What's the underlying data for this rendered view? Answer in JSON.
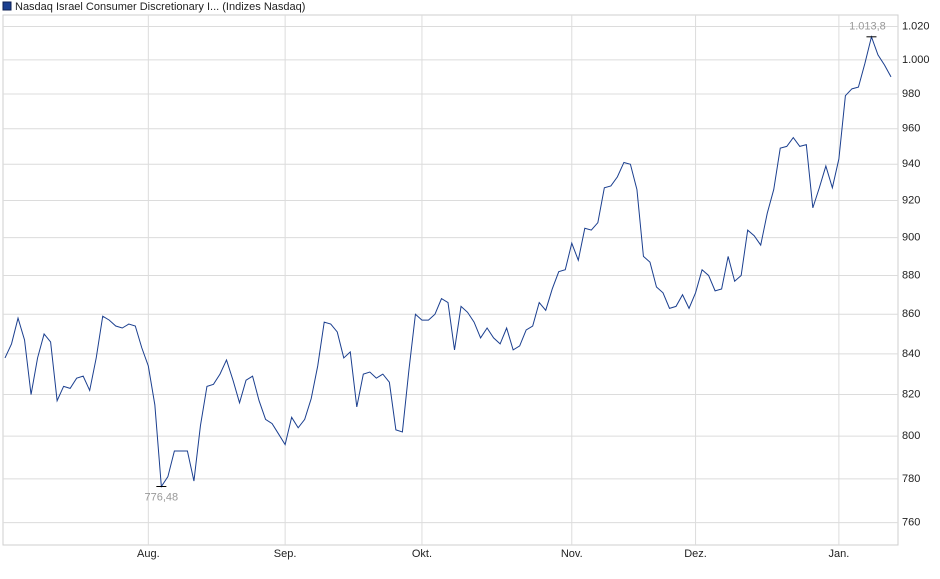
{
  "chart_data": {
    "type": "line",
    "log_scale": true,
    "grid": true,
    "legend_position": "top-left",
    "categories": [
      null,
      null,
      null,
      null,
      null,
      null,
      null,
      null,
      null,
      null,
      null,
      null,
      null,
      null,
      null,
      null,
      null,
      null,
      null,
      null,
      null,
      null,
      "Aug.",
      null,
      null,
      null,
      null,
      null,
      null,
      null,
      null,
      null,
      null,
      null,
      null,
      null,
      null,
      null,
      null,
      null,
      null,
      null,
      null,
      "Sep.",
      null,
      null,
      null,
      null,
      null,
      null,
      null,
      null,
      null,
      null,
      null,
      null,
      null,
      null,
      null,
      null,
      null,
      null,
      null,
      null,
      "Okt.",
      null,
      null,
      null,
      null,
      null,
      null,
      null,
      null,
      null,
      null,
      null,
      null,
      null,
      null,
      null,
      null,
      null,
      null,
      null,
      null,
      null,
      null,
      "Nov.",
      null,
      null,
      null,
      null,
      null,
      null,
      null,
      null,
      null,
      null,
      null,
      null,
      null,
      null,
      null,
      null,
      null,
      null,
      "Dez.",
      null,
      null,
      null,
      null,
      null,
      null,
      null,
      null,
      null,
      null,
      null,
      null,
      null,
      null,
      null,
      null,
      null,
      null,
      null,
      null,
      null,
      "Jan.",
      null,
      null,
      null,
      null,
      null,
      null,
      null,
      null
    ],
    "series": [
      {
        "name": "Nasdaq Israel Consumer Discretionary I... (Indizes Nasdaq)",
        "color": "#1b3f8f",
        "values": [
          838,
          845,
          858,
          847,
          820,
          838,
          850,
          846,
          817,
          824,
          823,
          828,
          829,
          822,
          838,
          859,
          857,
          854,
          853,
          855,
          854,
          843,
          834,
          815,
          776.48,
          781,
          793,
          793,
          793,
          779,
          805,
          824,
          825,
          830,
          837,
          827,
          816,
          827,
          829,
          817,
          808,
          806,
          801,
          796,
          809,
          804,
          808,
          818,
          834,
          856,
          855,
          851,
          838,
          841,
          814,
          830,
          831,
          828,
          830,
          826,
          803,
          802,
          832,
          860,
          857,
          857,
          860,
          868,
          866,
          842,
          864,
          861,
          856,
          848,
          853,
          848,
          845,
          853,
          842,
          844,
          852,
          854,
          866,
          862,
          873,
          882,
          883,
          897,
          888,
          905,
          904,
          908,
          927,
          928,
          933,
          941,
          940,
          926,
          890,
          887,
          874,
          871,
          863,
          864,
          870,
          863,
          871,
          883,
          880,
          872,
          873,
          890,
          877,
          880,
          904,
          901,
          896,
          913,
          926,
          949,
          950,
          955,
          950,
          951,
          916,
          927,
          939,
          927,
          943,
          979,
          983,
          984,
          998,
          1013.8,
          1003,
          997,
          990
        ],
        "value_labels": [
          null,
          null,
          null,
          null,
          null,
          null,
          null,
          null,
          null,
          null,
          null,
          null,
          null,
          null,
          null,
          null,
          null,
          null,
          null,
          null,
          null,
          null,
          null,
          null,
          "776,48",
          null,
          null,
          null,
          null,
          null,
          null,
          null,
          null,
          null,
          null,
          null,
          null,
          null,
          null,
          null,
          null,
          null,
          null,
          null,
          null,
          null,
          null,
          null,
          null,
          null,
          null,
          null,
          null,
          null,
          null,
          null,
          null,
          null,
          null,
          null,
          null,
          null,
          null,
          null,
          null,
          null,
          null,
          null,
          null,
          null,
          null,
          null,
          null,
          null,
          null,
          null,
          null,
          null,
          null,
          null,
          null,
          null,
          null,
          null,
          null,
          null,
          null,
          null,
          null,
          null,
          null,
          null,
          null,
          null,
          null,
          null,
          null,
          null,
          null,
          null,
          null,
          null,
          null,
          null,
          null,
          null,
          null,
          null,
          null,
          null,
          null,
          null,
          null,
          null,
          null,
          null,
          null,
          null,
          null,
          null,
          null,
          null,
          null,
          null,
          null,
          null,
          null,
          null,
          null,
          null,
          null,
          null,
          null,
          "1.013,8",
          null,
          null,
          null
        ]
      }
    ],
    "ylim": [
      750,
      1027
    ],
    "yticks": [
      760,
      780,
      800,
      820,
      840,
      860,
      880,
      900,
      920,
      940,
      960,
      980,
      {
        "value": 1000,
        "label": "1.000"
      },
      {
        "value": 1020,
        "label": "1.020"
      }
    ]
  }
}
